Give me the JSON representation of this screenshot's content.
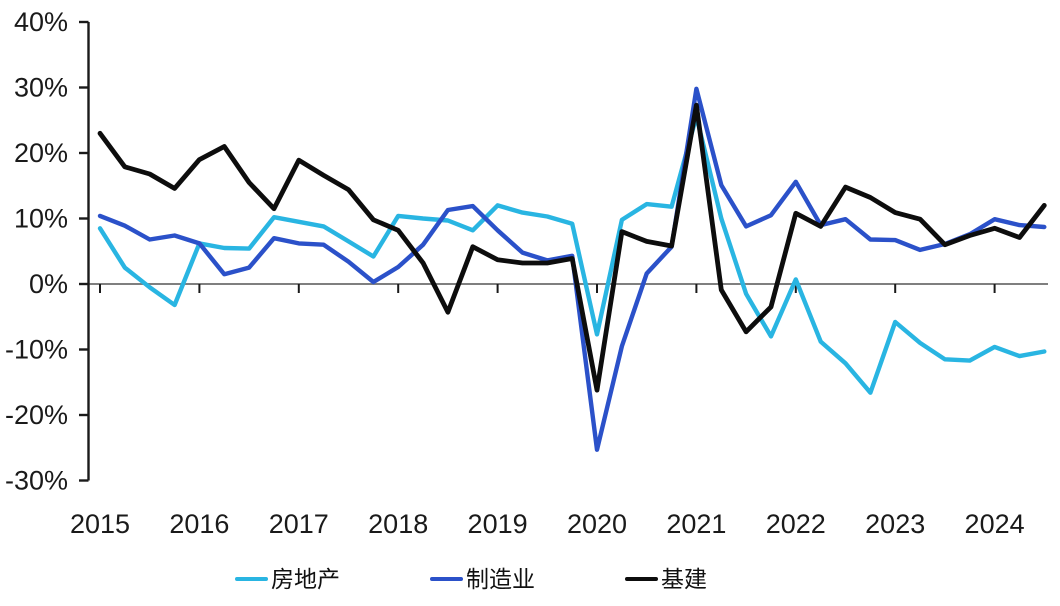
{
  "chart_data": {
    "type": "line",
    "title": "",
    "xlabel": "",
    "ylabel": "",
    "unit": "%",
    "ylim": [
      -30,
      40
    ],
    "y_ticks": [
      40,
      30,
      20,
      10,
      0,
      -10,
      -20,
      -30
    ],
    "y_tick_labels": [
      "40%",
      "30%",
      "20%",
      "10%",
      "0%",
      "-10%",
      "-20%",
      "-30%"
    ],
    "x_tick_labels": [
      "2015",
      "2016",
      "2017",
      "2018",
      "2019",
      "2020",
      "2021",
      "2022",
      "2023",
      "2024"
    ],
    "grid": "zero-baseline-only",
    "legend_position": "bottom-center",
    "axis_color": "#1a1a1a",
    "zero_line_color": "#7f7f7f",
    "background_color": "#ffffff",
    "categories": [
      "2015Q1",
      "2015Q2",
      "2015Q3",
      "2015Q4",
      "2016Q1",
      "2016Q2",
      "2016Q3",
      "2016Q4",
      "2017Q1",
      "2017Q2",
      "2017Q3",
      "2017Q4",
      "2018Q1",
      "2018Q2",
      "2018Q3",
      "2018Q4",
      "2019Q1",
      "2019Q2",
      "2019Q3",
      "2019Q4",
      "2020Q1",
      "2020Q2",
      "2020Q3",
      "2020Q4",
      "2021Q1",
      "2021Q2",
      "2021Q3",
      "2021Q4",
      "2022Q1",
      "2022Q2",
      "2022Q3",
      "2022Q4",
      "2023Q1",
      "2023Q2",
      "2023Q3",
      "2023Q4",
      "2024Q1",
      "2024Q2",
      "2024Q3"
    ],
    "series": [
      {
        "id": "real-estate",
        "name": "房地产",
        "color": "#29B5E2",
        "values": [
          8.5,
          2.5,
          -0.5,
          -3.2,
          6.2,
          5.5,
          5.4,
          10.2,
          9.5,
          8.8,
          6.5,
          4.2,
          10.4,
          10.0,
          9.7,
          8.2,
          12.0,
          10.9,
          10.3,
          9.2,
          -7.7,
          9.8,
          12.2,
          11.8,
          25.6,
          10.0,
          -1.5,
          -8.0,
          0.7,
          -8.8,
          -12.1,
          -16.6,
          -5.8,
          -9.0,
          -11.5,
          -11.7,
          -9.6,
          -11.0,
          -10.3
        ]
      },
      {
        "id": "manufacturing",
        "name": "制造业",
        "color": "#2B51C9",
        "values": [
          10.4,
          8.9,
          6.8,
          7.4,
          6.2,
          1.5,
          2.5,
          7.0,
          6.2,
          6.0,
          3.4,
          0.3,
          2.6,
          6.0,
          11.3,
          11.9,
          8.2,
          4.8,
          3.6,
          4.3,
          -25.3,
          -9.5,
          1.6,
          5.7,
          29.8,
          15.1,
          8.8,
          10.5,
          15.6,
          9.0,
          9.9,
          6.8,
          6.7,
          5.2,
          6.1,
          7.6,
          9.9,
          9.0,
          8.7
        ]
      },
      {
        "id": "infrastructure",
        "name": "基建",
        "color": "#0d0d0d",
        "values": [
          23.0,
          17.9,
          16.8,
          14.6,
          19.0,
          21.0,
          15.5,
          11.5,
          18.9,
          16.6,
          14.4,
          9.8,
          8.2,
          3.2,
          -4.3,
          5.7,
          3.7,
          3.2,
          3.2,
          3.9,
          -16.2,
          8.0,
          6.5,
          5.8,
          27.3,
          -0.9,
          -7.3,
          -3.5,
          10.8,
          8.8,
          14.8,
          13.2,
          10.9,
          9.9,
          6.0,
          7.4,
          8.5,
          7.1,
          12.0
        ]
      }
    ]
  }
}
